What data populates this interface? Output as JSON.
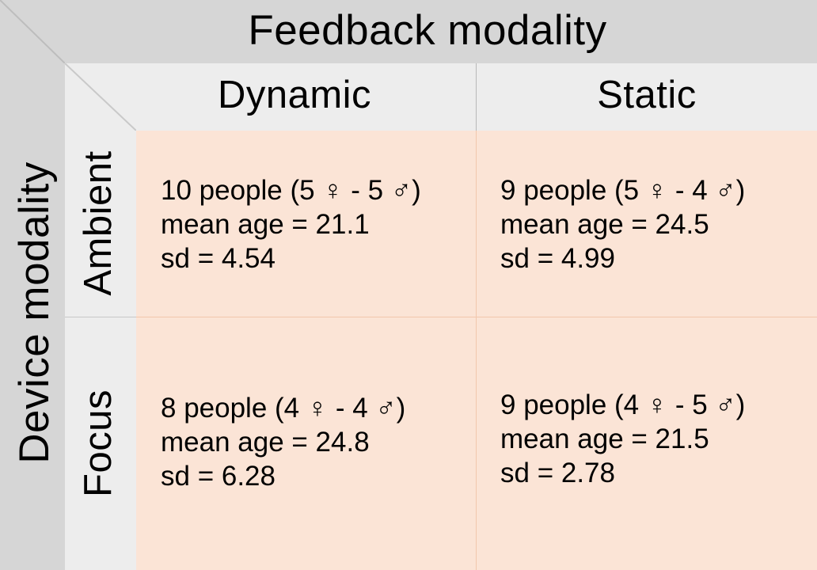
{
  "header": {
    "feedback_title": "Feedback modality",
    "device_title": "Device modality"
  },
  "columns": [
    "Dynamic",
    "Static"
  ],
  "rows": [
    "Ambient",
    "Focus"
  ],
  "cells": [
    [
      {
        "people": "10 people (5 ♀ - 5 ♂)",
        "mean_age": "mean age = 21.1",
        "sd": "sd = 4.54"
      },
      {
        "people": "9 people (5 ♀ - 4 ♂)",
        "mean_age": "mean age = 24.5",
        "sd": "sd = 4.99"
      }
    ],
    [
      {
        "people": "8 people (4 ♀ - 4 ♂)",
        "mean_age": "mean age = 24.8",
        "sd": "sd = 6.28"
      },
      {
        "people": "9 people (4 ♀ - 5 ♂)",
        "mean_age": "mean age = 21.5",
        "sd": "sd = 2.78"
      }
    ]
  ],
  "colors": {
    "outer_header": "#d6d6d6",
    "inner_header": "#ededed",
    "cell_fill": "#fbe4d6",
    "cell_border": "#f2c7ac"
  }
}
